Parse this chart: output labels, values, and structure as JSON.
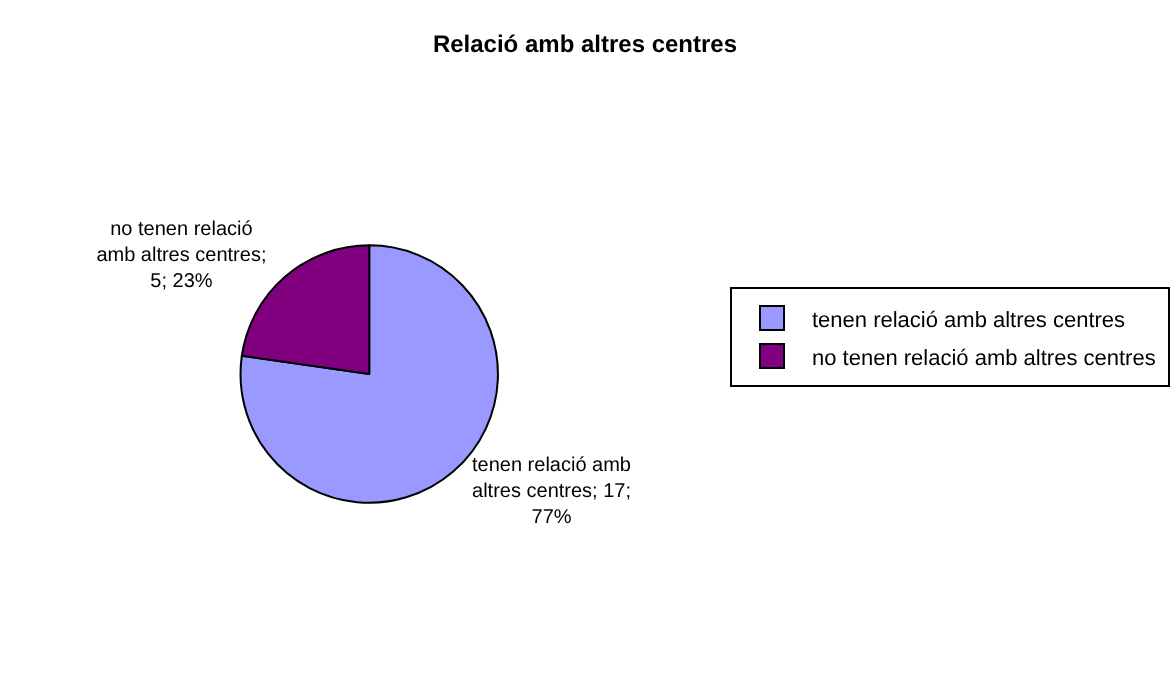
{
  "chart_data": {
    "type": "pie",
    "title": "Relació amb altres centres",
    "categories": [
      "tenen relació amb altres centres",
      "no tenen relació amb altres centres"
    ],
    "values": [
      17,
      5
    ],
    "colors": [
      "#9999ff",
      "#800080"
    ],
    "value_labels": [
      "tenen relació amb altres centres; 17; 77%",
      "no tenen relació amb altres centres; 5; 23%"
    ],
    "legend": "right"
  }
}
